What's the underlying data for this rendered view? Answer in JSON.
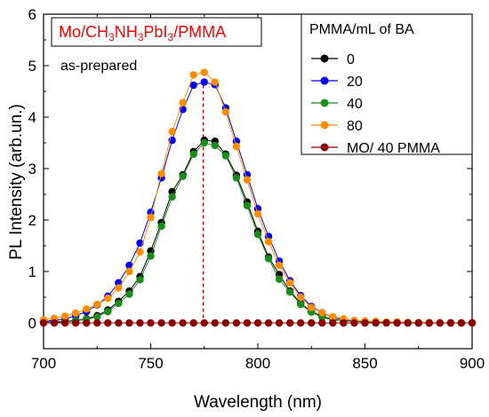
{
  "chart_data": {
    "type": "scatter",
    "title": "Mo/CH3NH3PbI3/PMMA",
    "title_parts": {
      "a": "Mo/CH",
      "s1": "3",
      "b": "NH",
      "s2": "3",
      "c": "PbI",
      "s3": "3",
      "d": "/PMMA"
    },
    "title_color": "#ff0000",
    "annotation": "as-prepared",
    "xlabel": "Wavelength (nm)",
    "ylabel": "PL Intensity (arb.un.)",
    "xlim": [
      700,
      900
    ],
    "ylim": [
      -0.5,
      6
    ],
    "xticks": [
      "700",
      "750",
      "800",
      "850",
      "900"
    ],
    "yticks": [
      "0",
      "1",
      "2",
      "3",
      "4",
      "5",
      "6"
    ],
    "grid": false,
    "legend": {
      "title": "PMMA/mL of BA",
      "position": "top-right"
    },
    "marker_line": {
      "x": 774.5,
      "y_top": 4.87,
      "color": "#cc0000"
    },
    "x": [
      700,
      705,
      710,
      715,
      720,
      725,
      730,
      735,
      740,
      745,
      750,
      755,
      760,
      765,
      770,
      775,
      780,
      785,
      790,
      795,
      800,
      805,
      810,
      815,
      820,
      825,
      830,
      835,
      840,
      845,
      850,
      855,
      860,
      865,
      870,
      875,
      880,
      885,
      890,
      895,
      900
    ],
    "series": [
      {
        "name": "0",
        "color": "#000000",
        "values": [
          0.01,
          0.02,
          0.03,
          0.05,
          0.08,
          0.14,
          0.25,
          0.42,
          0.62,
          0.9,
          1.4,
          1.95,
          2.55,
          2.88,
          3.33,
          3.55,
          3.53,
          3.28,
          2.87,
          2.35,
          1.78,
          1.28,
          0.94,
          0.62,
          0.38,
          0.22,
          0.13,
          0.07,
          0.04,
          0.03,
          0.02,
          0.01,
          0.01,
          0.01,
          0.0,
          0.0,
          0.0,
          0.0,
          0.0,
          0.0,
          0.0
        ]
      },
      {
        "name": "20",
        "color": "#0000ee",
        "values": [
          0.03,
          0.05,
          0.08,
          0.14,
          0.22,
          0.35,
          0.52,
          0.78,
          1.12,
          1.55,
          2.15,
          2.82,
          3.55,
          4.15,
          4.62,
          4.68,
          4.63,
          4.18,
          3.53,
          2.88,
          2.22,
          1.68,
          1.2,
          0.82,
          0.53,
          0.32,
          0.2,
          0.11,
          0.06,
          0.04,
          0.03,
          0.02,
          0.01,
          0.01,
          0.01,
          0.0,
          0.0,
          0.0,
          0.0,
          0.0,
          0.0
        ]
      },
      {
        "name": "40",
        "color": "#1a8c1a",
        "values": [
          0.01,
          0.01,
          0.02,
          0.04,
          0.07,
          0.12,
          0.22,
          0.38,
          0.56,
          0.84,
          1.3,
          1.88,
          2.45,
          2.85,
          3.28,
          3.5,
          3.45,
          3.25,
          2.82,
          2.28,
          1.72,
          1.25,
          0.85,
          0.6,
          0.36,
          0.21,
          0.11,
          0.06,
          0.04,
          0.03,
          0.02,
          0.01,
          0.01,
          0.0,
          0.0,
          0.0,
          0.0,
          0.0,
          0.0,
          0.0,
          0.0
        ]
      },
      {
        "name": "80",
        "color": "#ff8c00",
        "values": [
          0.06,
          0.09,
          0.13,
          0.19,
          0.27,
          0.36,
          0.48,
          0.68,
          1.0,
          1.38,
          2.05,
          2.9,
          3.72,
          4.28,
          4.82,
          4.87,
          4.68,
          4.1,
          3.43,
          2.78,
          2.12,
          1.58,
          1.12,
          0.78,
          0.5,
          0.3,
          0.2,
          0.12,
          0.08,
          0.05,
          0.04,
          0.03,
          0.02,
          0.02,
          0.01,
          0.01,
          0.01,
          0.0,
          0.0,
          0.0,
          0.0
        ]
      },
      {
        "name": "MO/ 40 PMMA",
        "color": "#8b0000",
        "values": [
          0.0,
          0.0,
          0.0,
          0.0,
          0.0,
          0.0,
          0.0,
          0.0,
          0.0,
          0.0,
          0.0,
          0.0,
          0.0,
          0.0,
          0.0,
          0.0,
          0.0,
          0.0,
          0.0,
          0.0,
          0.0,
          0.0,
          0.0,
          0.0,
          0.0,
          0.0,
          0.0,
          0.0,
          0.0,
          0.0,
          0.0,
          0.0,
          0.0,
          0.0,
          0.0,
          0.0,
          0.0,
          0.0,
          0.0,
          0.0,
          0.0
        ]
      }
    ]
  }
}
